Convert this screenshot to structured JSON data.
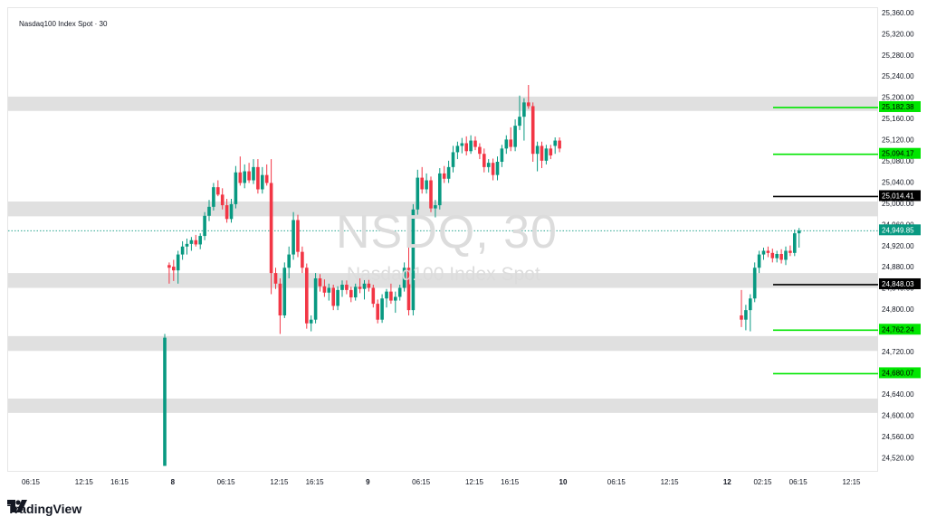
{
  "legend": "Nasdaq100 Index Spot · 30",
  "watermark": {
    "symbol": "NSDQ, 30",
    "name": "Nasdaq100 Index Spot"
  },
  "brand": "TradingView",
  "colors": {
    "up": "#089981",
    "down": "#f23645",
    "zone": "#e0e0e0",
    "green_level": "#00e600",
    "black_level": "#000000",
    "current_price": "#089981"
  },
  "chart_data": {
    "type": "candlestick",
    "ylim": [
      24500,
      25370
    ],
    "price_ticks": [
      "25,360.00",
      "25,320.00",
      "25,280.00",
      "25,240.00",
      "25,200.00",
      "25,160.00",
      "25,120.00",
      "25,080.00",
      "25,040.00",
      "25,000.00",
      "24,960.00",
      "24,920.00",
      "24,880.00",
      "24,840.00",
      "24,800.00",
      "24,760.00",
      "24,720.00",
      "24,680.00",
      "24,640.00",
      "24,600.00",
      "24,560.00",
      "24,520.00"
    ],
    "time_ticks": [
      {
        "label": "06:15",
        "idx": 5,
        "bold": false
      },
      {
        "label": "12:15",
        "idx": 17,
        "bold": false
      },
      {
        "label": "16:15",
        "idx": 25,
        "bold": false
      },
      {
        "label": "8",
        "idx": 37,
        "bold": true
      },
      {
        "label": "06:15",
        "idx": 49,
        "bold": false
      },
      {
        "label": "12:15",
        "idx": 61,
        "bold": false
      },
      {
        "label": "16:15",
        "idx": 69,
        "bold": false
      },
      {
        "label": "9",
        "idx": 81,
        "bold": true
      },
      {
        "label": "06:15",
        "idx": 93,
        "bold": false
      },
      {
        "label": "12:15",
        "idx": 105,
        "bold": false
      },
      {
        "label": "16:15",
        "idx": 113,
        "bold": false
      },
      {
        "label": "10",
        "idx": 125,
        "bold": true
      },
      {
        "label": "06:15",
        "idx": 137,
        "bold": false
      },
      {
        "label": "12:15",
        "idx": 149,
        "bold": false
      },
      {
        "label": "12",
        "idx": 162,
        "bold": true
      },
      {
        "label": "02:15",
        "idx": 170,
        "bold": false
      },
      {
        "label": "06:15",
        "idx": 178,
        "bold": false
      },
      {
        "label": "12:15",
        "idx": 190,
        "bold": false
      }
    ],
    "zones": [
      [
        25176,
        25203
      ],
      [
        24977,
        25005
      ],
      [
        24842,
        24870
      ],
      [
        24723,
        24751
      ],
      [
        24606,
        24633
      ]
    ],
    "levels": [
      {
        "label": "25,182.38",
        "price": 25182.38,
        "style": "green"
      },
      {
        "label": "25,094.17",
        "price": 25094.17,
        "style": "green"
      },
      {
        "label": "25,014.41",
        "price": 25014.41,
        "style": "black"
      },
      {
        "label": "24,949.85",
        "price": 24949.85,
        "style": "current"
      },
      {
        "label": "24,848.03",
        "price": 24848.03,
        "style": "black"
      },
      {
        "label": "24,762.24",
        "price": 24762.24,
        "style": "green"
      },
      {
        "label": "24,680.07",
        "price": 24680.07,
        "style": "green"
      }
    ],
    "candles": [
      {
        "i": 35,
        "o": 24506,
        "h": 24755,
        "l": 24506,
        "c": 24748
      },
      {
        "i": 36,
        "o": 24885,
        "h": 24890,
        "l": 24850,
        "c": 24880
      },
      {
        "i": 37,
        "o": 24882,
        "h": 24895,
        "l": 24855,
        "c": 24875
      },
      {
        "i": 38,
        "o": 24875,
        "h": 24912,
        "l": 24850,
        "c": 24905
      },
      {
        "i": 39,
        "o": 24905,
        "h": 24930,
        "l": 24895,
        "c": 24920
      },
      {
        "i": 40,
        "o": 24920,
        "h": 24935,
        "l": 24905,
        "c": 24925
      },
      {
        "i": 41,
        "o": 24925,
        "h": 24938,
        "l": 24912,
        "c": 24932
      },
      {
        "i": 42,
        "o": 24932,
        "h": 24942,
        "l": 24920,
        "c": 24924
      },
      {
        "i": 43,
        "o": 24924,
        "h": 24945,
        "l": 24915,
        "c": 24940
      },
      {
        "i": 44,
        "o": 24940,
        "h": 24985,
        "l": 24932,
        "c": 24978
      },
      {
        "i": 45,
        "o": 24978,
        "h": 25008,
        "l": 24968,
        "c": 24995
      },
      {
        "i": 46,
        "o": 24995,
        "h": 25040,
        "l": 24988,
        "c": 25032
      },
      {
        "i": 47,
        "o": 25032,
        "h": 25045,
        "l": 25015,
        "c": 25018
      },
      {
        "i": 48,
        "o": 25018,
        "h": 25030,
        "l": 24990,
        "c": 24998
      },
      {
        "i": 49,
        "o": 24998,
        "h": 25010,
        "l": 24965,
        "c": 24972
      },
      {
        "i": 50,
        "o": 24972,
        "h": 25010,
        "l": 24965,
        "c": 25000
      },
      {
        "i": 51,
        "o": 25000,
        "h": 25072,
        "l": 24992,
        "c": 25060
      },
      {
        "i": 52,
        "o": 25060,
        "h": 25090,
        "l": 25035,
        "c": 25040
      },
      {
        "i": 53,
        "o": 25040,
        "h": 25075,
        "l": 25030,
        "c": 25062
      },
      {
        "i": 54,
        "o": 25062,
        "h": 25078,
        "l": 25040,
        "c": 25045
      },
      {
        "i": 55,
        "o": 25045,
        "h": 25085,
        "l": 25038,
        "c": 25070
      },
      {
        "i": 56,
        "o": 25070,
        "h": 25085,
        "l": 25020,
        "c": 25028
      },
      {
        "i": 57,
        "o": 25028,
        "h": 25070,
        "l": 25020,
        "c": 25055
      },
      {
        "i": 58,
        "o": 25055,
        "h": 25075,
        "l": 25035,
        "c": 25040
      },
      {
        "i": 59,
        "o": 25040,
        "h": 25085,
        "l": 24830,
        "c": 24870
      },
      {
        "i": 60,
        "o": 24870,
        "h": 24880,
        "l": 24840,
        "c": 24850
      },
      {
        "i": 61,
        "o": 24850,
        "h": 24860,
        "l": 24755,
        "c": 24790
      },
      {
        "i": 62,
        "o": 24790,
        "h": 24890,
        "l": 24785,
        "c": 24880
      },
      {
        "i": 63,
        "o": 24880,
        "h": 24920,
        "l": 24860,
        "c": 24905
      },
      {
        "i": 64,
        "o": 24905,
        "h": 24985,
        "l": 24895,
        "c": 24970
      },
      {
        "i": 65,
        "o": 24970,
        "h": 24980,
        "l": 24900,
        "c": 24910
      },
      {
        "i": 66,
        "o": 24910,
        "h": 24920,
        "l": 24870,
        "c": 24880
      },
      {
        "i": 67,
        "o": 24880,
        "h": 24888,
        "l": 24765,
        "c": 24775
      },
      {
        "i": 68,
        "o": 24775,
        "h": 24790,
        "l": 24760,
        "c": 24782
      },
      {
        "i": 69,
        "o": 24782,
        "h": 24870,
        "l": 24775,
        "c": 24860
      },
      {
        "i": 70,
        "o": 24860,
        "h": 24868,
        "l": 24835,
        "c": 24845
      },
      {
        "i": 71,
        "o": 24845,
        "h": 24858,
        "l": 24825,
        "c": 24833
      },
      {
        "i": 72,
        "o": 24833,
        "h": 24850,
        "l": 24818,
        "c": 24842
      },
      {
        "i": 73,
        "o": 24842,
        "h": 24848,
        "l": 24800,
        "c": 24808
      },
      {
        "i": 74,
        "o": 24808,
        "h": 24845,
        "l": 24800,
        "c": 24838
      },
      {
        "i": 75,
        "o": 24838,
        "h": 24856,
        "l": 24825,
        "c": 24848
      },
      {
        "i": 76,
        "o": 24848,
        "h": 24856,
        "l": 24830,
        "c": 24838
      },
      {
        "i": 77,
        "o": 24838,
        "h": 24844,
        "l": 24815,
        "c": 24824
      },
      {
        "i": 78,
        "o": 24824,
        "h": 24850,
        "l": 24818,
        "c": 24844
      },
      {
        "i": 79,
        "o": 24844,
        "h": 24860,
        "l": 24832,
        "c": 24840
      },
      {
        "i": 80,
        "o": 24840,
        "h": 24858,
        "l": 24820,
        "c": 24850
      },
      {
        "i": 81,
        "o": 24850,
        "h": 24870,
        "l": 24835,
        "c": 24842
      },
      {
        "i": 82,
        "o": 24842,
        "h": 24848,
        "l": 24805,
        "c": 24812
      },
      {
        "i": 83,
        "o": 24812,
        "h": 24820,
        "l": 24775,
        "c": 24782
      },
      {
        "i": 84,
        "o": 24782,
        "h": 24830,
        "l": 24776,
        "c": 24822
      },
      {
        "i": 85,
        "o": 24822,
        "h": 24840,
        "l": 24805,
        "c": 24835
      },
      {
        "i": 86,
        "o": 24835,
        "h": 24850,
        "l": 24812,
        "c": 24818
      },
      {
        "i": 87,
        "o": 24818,
        "h": 24835,
        "l": 24795,
        "c": 24825
      },
      {
        "i": 88,
        "o": 24825,
        "h": 24848,
        "l": 24818,
        "c": 24842
      },
      {
        "i": 89,
        "o": 24842,
        "h": 24890,
        "l": 24835,
        "c": 24880
      },
      {
        "i": 90,
        "o": 24880,
        "h": 24950,
        "l": 24790,
        "c": 24800
      },
      {
        "i": 91,
        "o": 24800,
        "h": 25000,
        "l": 24790,
        "c": 24990
      },
      {
        "i": 92,
        "o": 24990,
        "h": 25065,
        "l": 24980,
        "c": 25050
      },
      {
        "i": 93,
        "o": 25050,
        "h": 25070,
        "l": 25020,
        "c": 25028
      },
      {
        "i": 94,
        "o": 25028,
        "h": 25058,
        "l": 25020,
        "c": 25045
      },
      {
        "i": 95,
        "o": 25045,
        "h": 25052,
        "l": 24985,
        "c": 24992
      },
      {
        "i": 96,
        "o": 24992,
        "h": 25008,
        "l": 24975,
        "c": 24998
      },
      {
        "i": 97,
        "o": 24998,
        "h": 25068,
        "l": 24990,
        "c": 25058
      },
      {
        "i": 98,
        "o": 25058,
        "h": 25072,
        "l": 25040,
        "c": 25048
      },
      {
        "i": 99,
        "o": 25048,
        "h": 25082,
        "l": 25040,
        "c": 25070
      },
      {
        "i": 100,
        "o": 25070,
        "h": 25110,
        "l": 25060,
        "c": 25098
      },
      {
        "i": 101,
        "o": 25098,
        "h": 25118,
        "l": 25085,
        "c": 25110
      },
      {
        "i": 102,
        "o": 25110,
        "h": 25125,
        "l": 25096,
        "c": 25115
      },
      {
        "i": 103,
        "o": 25115,
        "h": 25128,
        "l": 25092,
        "c": 25100
      },
      {
        "i": 104,
        "o": 25100,
        "h": 25130,
        "l": 25095,
        "c": 25120
      },
      {
        "i": 105,
        "o": 25120,
        "h": 25128,
        "l": 25102,
        "c": 25108
      },
      {
        "i": 106,
        "o": 25108,
        "h": 25115,
        "l": 25085,
        "c": 25095
      },
      {
        "i": 107,
        "o": 25095,
        "h": 25105,
        "l": 25060,
        "c": 25070
      },
      {
        "i": 108,
        "o": 25070,
        "h": 25085,
        "l": 25060,
        "c": 25078
      },
      {
        "i": 109,
        "o": 25078,
        "h": 25086,
        "l": 25045,
        "c": 25055
      },
      {
        "i": 110,
        "o": 25055,
        "h": 25090,
        "l": 25045,
        "c": 25080
      },
      {
        "i": 111,
        "o": 25080,
        "h": 25112,
        "l": 25070,
        "c": 25105
      },
      {
        "i": 112,
        "o": 25105,
        "h": 25130,
        "l": 25095,
        "c": 25122
      },
      {
        "i": 113,
        "o": 25122,
        "h": 25145,
        "l": 25100,
        "c": 25108
      },
      {
        "i": 114,
        "o": 25108,
        "h": 25160,
        "l": 25100,
        "c": 25148
      },
      {
        "i": 115,
        "o": 25148,
        "h": 25205,
        "l": 25140,
        "c": 25165
      },
      {
        "i": 116,
        "o": 25165,
        "h": 25200,
        "l": 25120,
        "c": 25192
      },
      {
        "i": 117,
        "o": 25192,
        "h": 25225,
        "l": 25180,
        "c": 25185
      },
      {
        "i": 118,
        "o": 25185,
        "h": 25192,
        "l": 25080,
        "c": 25095
      },
      {
        "i": 119,
        "o": 25095,
        "h": 25118,
        "l": 25062,
        "c": 25110
      },
      {
        "i": 120,
        "o": 25110,
        "h": 25118,
        "l": 25068,
        "c": 25082
      },
      {
        "i": 121,
        "o": 25082,
        "h": 25112,
        "l": 25075,
        "c": 25105
      },
      {
        "i": 122,
        "o": 25105,
        "h": 25112,
        "l": 25085,
        "c": 25092
      },
      {
        "i": 123,
        "o": 25110,
        "h": 25126,
        "l": 25095,
        "c": 25120
      },
      {
        "i": 124,
        "o": 25120,
        "h": 25126,
        "l": 25098,
        "c": 25105
      },
      {
        "i": 165,
        "o": 24790,
        "h": 24838,
        "l": 24768,
        "c": 24782
      },
      {
        "i": 166,
        "o": 24782,
        "h": 24810,
        "l": 24762,
        "c": 24800
      },
      {
        "i": 167,
        "o": 24800,
        "h": 24830,
        "l": 24760,
        "c": 24822
      },
      {
        "i": 168,
        "o": 24822,
        "h": 24890,
        "l": 24815,
        "c": 24880
      },
      {
        "i": 169,
        "o": 24880,
        "h": 24912,
        "l": 24870,
        "c": 24905
      },
      {
        "i": 170,
        "o": 24905,
        "h": 24918,
        "l": 24895,
        "c": 24912
      },
      {
        "i": 171,
        "o": 24912,
        "h": 24920,
        "l": 24900,
        "c": 24908
      },
      {
        "i": 172,
        "o": 24908,
        "h": 24916,
        "l": 24890,
        "c": 24898
      },
      {
        "i": 173,
        "o": 24898,
        "h": 24912,
        "l": 24890,
        "c": 24906
      },
      {
        "i": 174,
        "o": 24906,
        "h": 24915,
        "l": 24888,
        "c": 24895
      },
      {
        "i": 175,
        "o": 24895,
        "h": 24920,
        "l": 24885,
        "c": 24912
      },
      {
        "i": 176,
        "o": 24912,
        "h": 24922,
        "l": 24902,
        "c": 24908
      },
      {
        "i": 177,
        "o": 24908,
        "h": 24952,
        "l": 24902,
        "c": 24945
      },
      {
        "i": 178,
        "o": 24945,
        "h": 24955,
        "l": 24918,
        "c": 24950
      }
    ]
  }
}
